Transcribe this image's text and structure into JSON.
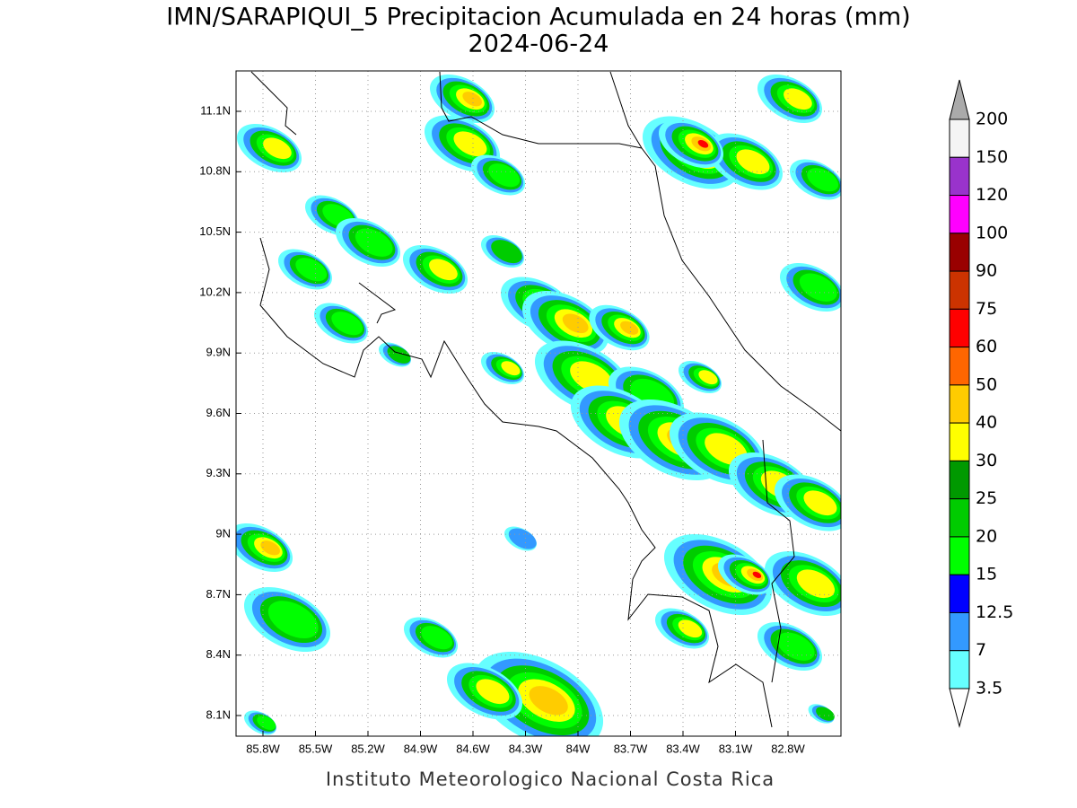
{
  "title": "IMN/SARAPIQUI_5 Precipitacion Acumulada en 24 horas (mm)",
  "subtitle": "2024-06-24",
  "map": {
    "x_ticks": [
      "85.8W",
      "85.5W",
      "85.2W",
      "84.9W",
      "84.6W",
      "84.3W",
      "84W",
      "83.7W",
      "83.4W",
      "83.1W",
      "82.8W"
    ],
    "y_ticks": [
      "11.1N",
      "10.8N",
      "10.5N",
      "10.2N",
      "9.9N",
      "9.6N",
      "9.3N",
      "9N",
      "8.7N",
      "8.4N",
      "8.1N"
    ]
  },
  "colorbar": {
    "labels": [
      "200",
      "150",
      "120",
      "100",
      "90",
      "75",
      "60",
      "50",
      "40",
      "30",
      "25",
      "20",
      "15",
      "12.5",
      "7",
      "3.5"
    ],
    "colors": [
      "#f4f4f4",
      "#9933cc",
      "#ff00ff",
      "#990000",
      "#cc3300",
      "#ff0000",
      "#ff6600",
      "#ffcc00",
      "#ffff00",
      "#009900",
      "#00cc00",
      "#00ff00",
      "#0000ff",
      "#3399ff",
      "#66ffff"
    ],
    "over_color": "#aaaaaa",
    "under_color": "#ffffff"
  },
  "footer": "Instituto Meteorologico Nacional Costa Rica"
}
